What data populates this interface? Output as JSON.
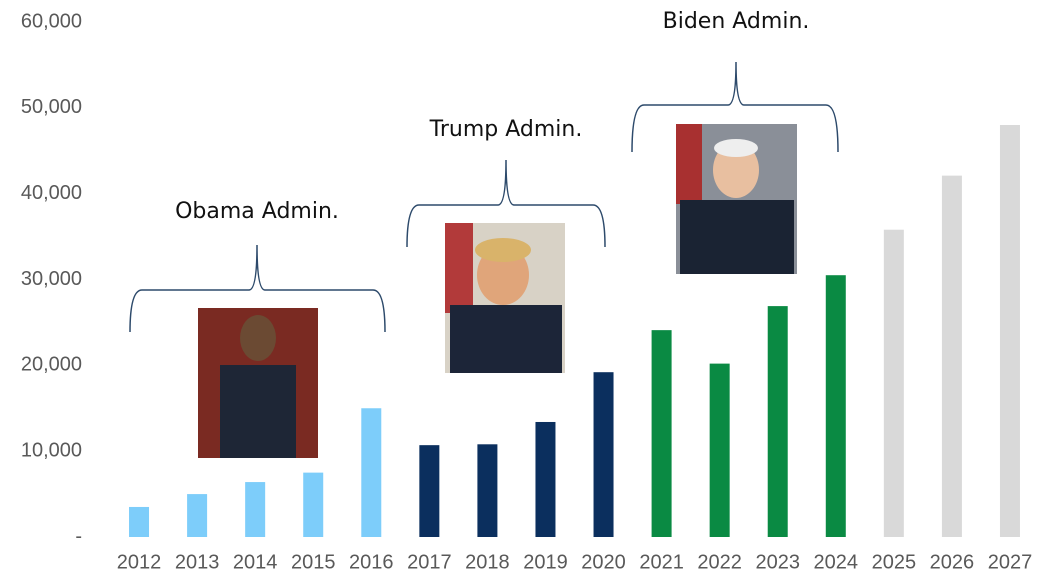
{
  "chart_data": {
    "type": "bar",
    "categories": [
      "2012",
      "2013",
      "2014",
      "2015",
      "2016",
      "2017",
      "2018",
      "2019",
      "2020",
      "2021",
      "2022",
      "2023",
      "2024",
      "2025",
      "2026",
      "2027"
    ],
    "values": [
      3500,
      5000,
      6400,
      7500,
      15000,
      10700,
      10800,
      13400,
      19200,
      24100,
      20200,
      26900,
      30500,
      35800,
      42100,
      48000
    ],
    "colors": [
      "#7dcdfa",
      "#7dcdfa",
      "#7dcdfa",
      "#7dcdfa",
      "#7dcdfa",
      "#0b2f5e",
      "#0b2f5e",
      "#0b2f5e",
      "#0b2f5e",
      "#0a8a43",
      "#0a8a43",
      "#0a8a43",
      "#0a8a43",
      "#d9d9d9",
      "#d9d9d9",
      "#d9d9d9"
    ],
    "ylim": [
      0,
      60000
    ],
    "yticks": [
      {
        "value": 0,
        "label": "-"
      },
      {
        "value": 10000,
        "label": "10,000"
      },
      {
        "value": 20000,
        "label": "20,000"
      },
      {
        "value": 30000,
        "label": "30,000"
      },
      {
        "value": 40000,
        "label": "40,000"
      },
      {
        "value": 50000,
        "label": "50,000"
      },
      {
        "value": 60000,
        "label": "60,000"
      }
    ],
    "grid": false,
    "annotations": [
      "Obama Admin.",
      "Trump Admin.",
      "Biden Admin."
    ]
  }
}
